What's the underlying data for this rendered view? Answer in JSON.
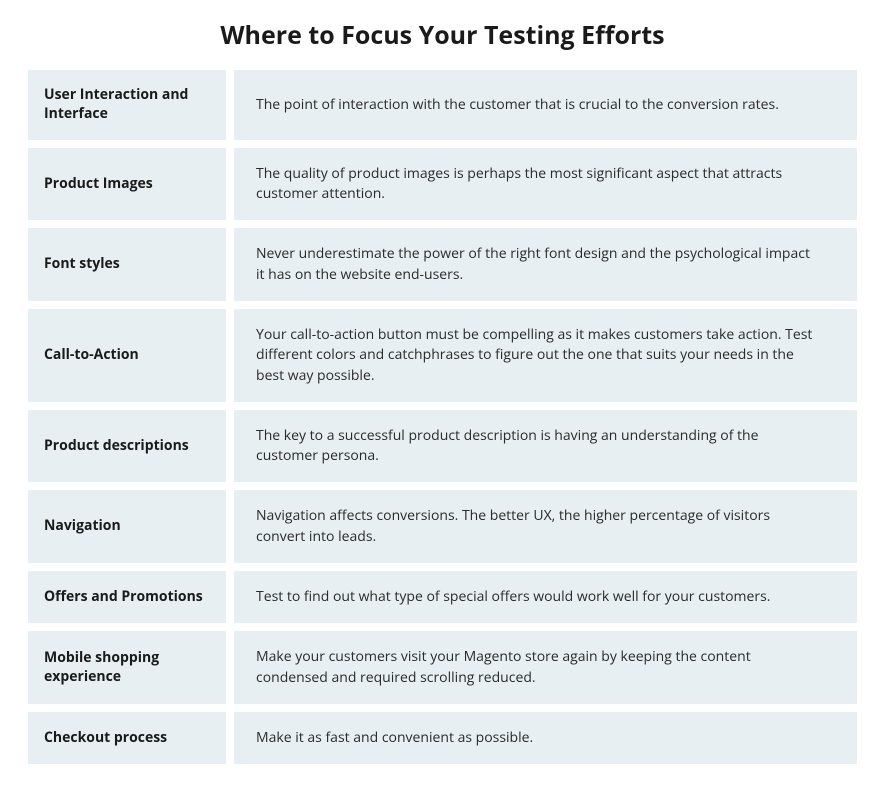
{
  "title": "Where to Focus Your Testing Efforts",
  "style": {
    "cell_bg": "#e8eff2",
    "title_color": "#1a1a1a",
    "label_color": "#1a1a1a",
    "desc_color": "#2a2a2a",
    "title_fontsize": 25,
    "label_fontsize": 14,
    "desc_fontsize": 14,
    "label_fontweight": 700,
    "desc_fontweight": 400,
    "row_gap": 8,
    "col_gap": 8,
    "label_col_width": 198,
    "page_bg": "#ffffff"
  },
  "rows": [
    {
      "label": "User Interaction and Interface",
      "description": "The point of interaction with the customer that is crucial to the conversion rates."
    },
    {
      "label": "Product Images",
      "description": "The quality of product images is perhaps the most significant aspect that attracts customer attention."
    },
    {
      "label": "Font styles",
      "description": "Never underestimate the power of the right font design and the psychological impact it has on the website end-users."
    },
    {
      "label": "Call-to-Action",
      "description": "Your call-to-action button must be compelling as it makes customers take action. Test different colors and catchphrases to figure out the one that suits your needs in the best way possible."
    },
    {
      "label": "Product descriptions",
      "description": "The key to a successful product description is having an understanding of the customer persona."
    },
    {
      "label": "Navigation",
      "description": "Navigation affects conversions. The better UX, the higher percentage of visitors convert into leads."
    },
    {
      "label": "Offers and Promotions",
      "description": "Test to find out what type of special offers would work well for your customers."
    },
    {
      "label": "Mobile shopping experience",
      "description": "Make your customers visit your Magento store again by keeping the content condensed and required scrolling reduced."
    },
    {
      "label": "Checkout process",
      "description": "Make it as fast and convenient as possible."
    }
  ]
}
